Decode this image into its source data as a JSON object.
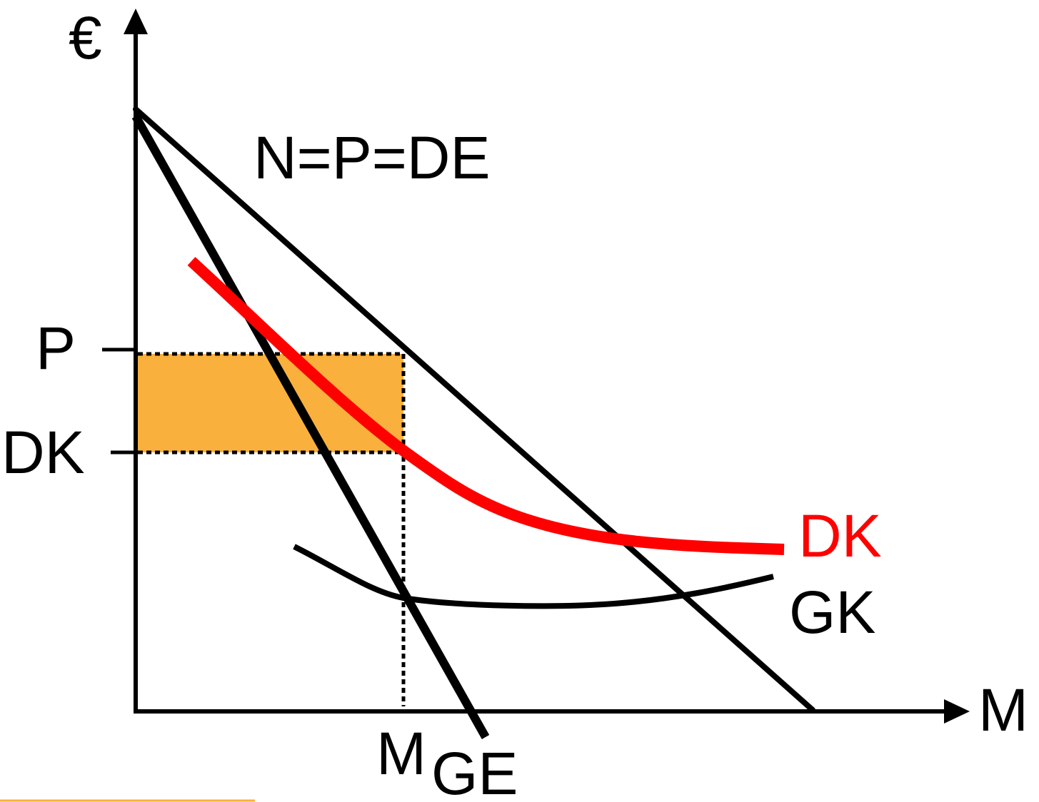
{
  "labels": {
    "y_axis": "€",
    "x_axis": "M",
    "demand_curve": "N=P=DE",
    "price_tick": "P",
    "avg_cost_tick": "DK",
    "avg_cost_curve": "DK",
    "marginal_cost_curve": "GK",
    "quantity_main": "M",
    "quantity_sub": "GE"
  },
  "colors": {
    "axis": "#000000",
    "avg_cost_curve": "#ff0000",
    "profit_area": "#f9b03c",
    "footer_rule": "#f9b03c"
  }
}
